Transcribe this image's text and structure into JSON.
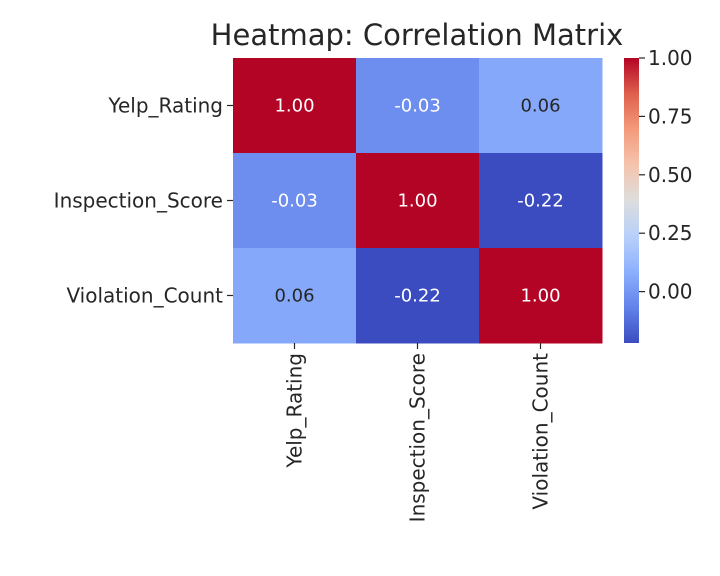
{
  "chart_data": {
    "type": "heatmap",
    "title": "Heatmap: Correlation Matrix",
    "row_labels": [
      "Yelp_Rating",
      "Inspection_Score",
      "Violation_Count"
    ],
    "col_labels": [
      "Yelp_Rating",
      "Inspection_Score",
      "Violation_Count"
    ],
    "values": [
      [
        1.0,
        -0.03,
        0.06
      ],
      [
        -0.03,
        1.0,
        -0.22
      ],
      [
        0.06,
        -0.22,
        1.0
      ]
    ],
    "value_labels": [
      [
        "1.00",
        "-0.03",
        "0.06"
      ],
      [
        "-0.03",
        "1.00",
        "-0.22"
      ],
      [
        "0.06",
        "-0.22",
        "1.00"
      ]
    ],
    "colormap": "coolwarm",
    "vmin": -0.22,
    "vmax": 1.0,
    "colorbar": {
      "ticks": [
        0.0,
        0.25,
        0.5,
        0.75,
        1.0
      ],
      "tick_labels": [
        "0.00",
        "0.25",
        "0.50",
        "0.75",
        "1.00"
      ]
    }
  }
}
